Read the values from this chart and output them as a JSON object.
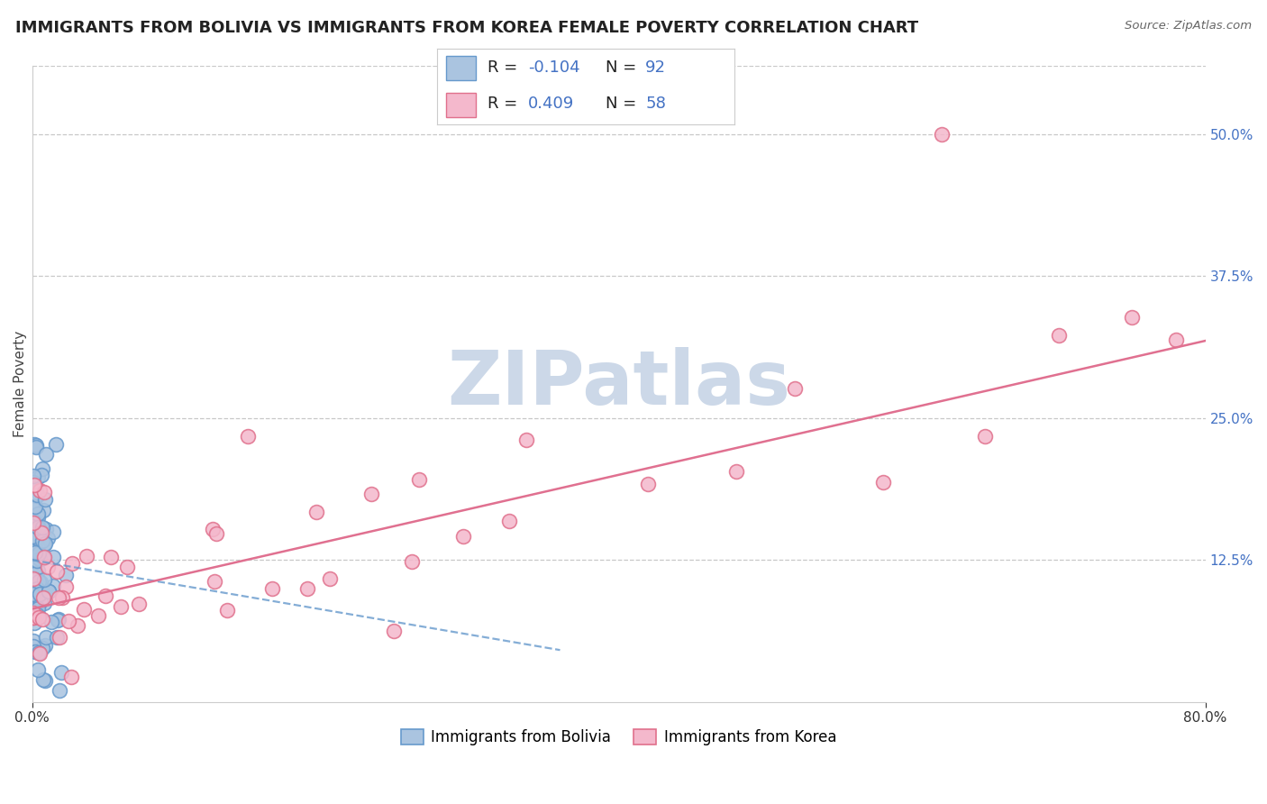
{
  "title": "IMMIGRANTS FROM BOLIVIA VS IMMIGRANTS FROM KOREA FEMALE POVERTY CORRELATION CHART",
  "source": "Source: ZipAtlas.com",
  "ylabel": "Female Poverty",
  "series": [
    {
      "name": "Immigrants from Bolivia",
      "R": -0.104,
      "N": 92,
      "color": "#aac4e0",
      "edge_color": "#6699cc",
      "trend_color": "#6699cc",
      "trend_style": "--"
    },
    {
      "name": "Immigrants from Korea",
      "R": 0.409,
      "N": 58,
      "color": "#f4b8cc",
      "edge_color": "#e0708c",
      "trend_color": "#e07090",
      "trend_style": "-"
    }
  ],
  "xlim": [
    0.0,
    0.8
  ],
  "ylim": [
    0.0,
    0.56
  ],
  "yticks_right": [
    0.125,
    0.25,
    0.375,
    0.5
  ],
  "ytick_right_labels": [
    "12.5%",
    "25.0%",
    "37.5%",
    "50.0%"
  ],
  "watermark": "ZIPatlas",
  "background_color": "#ffffff",
  "grid_color": "#c8c8c8",
  "title_fontsize": 13,
  "axis_label_fontsize": 11,
  "tick_fontsize": 11,
  "legend_fontsize": 13,
  "watermark_color": "#ccd8e8",
  "watermark_fontsize": 60
}
